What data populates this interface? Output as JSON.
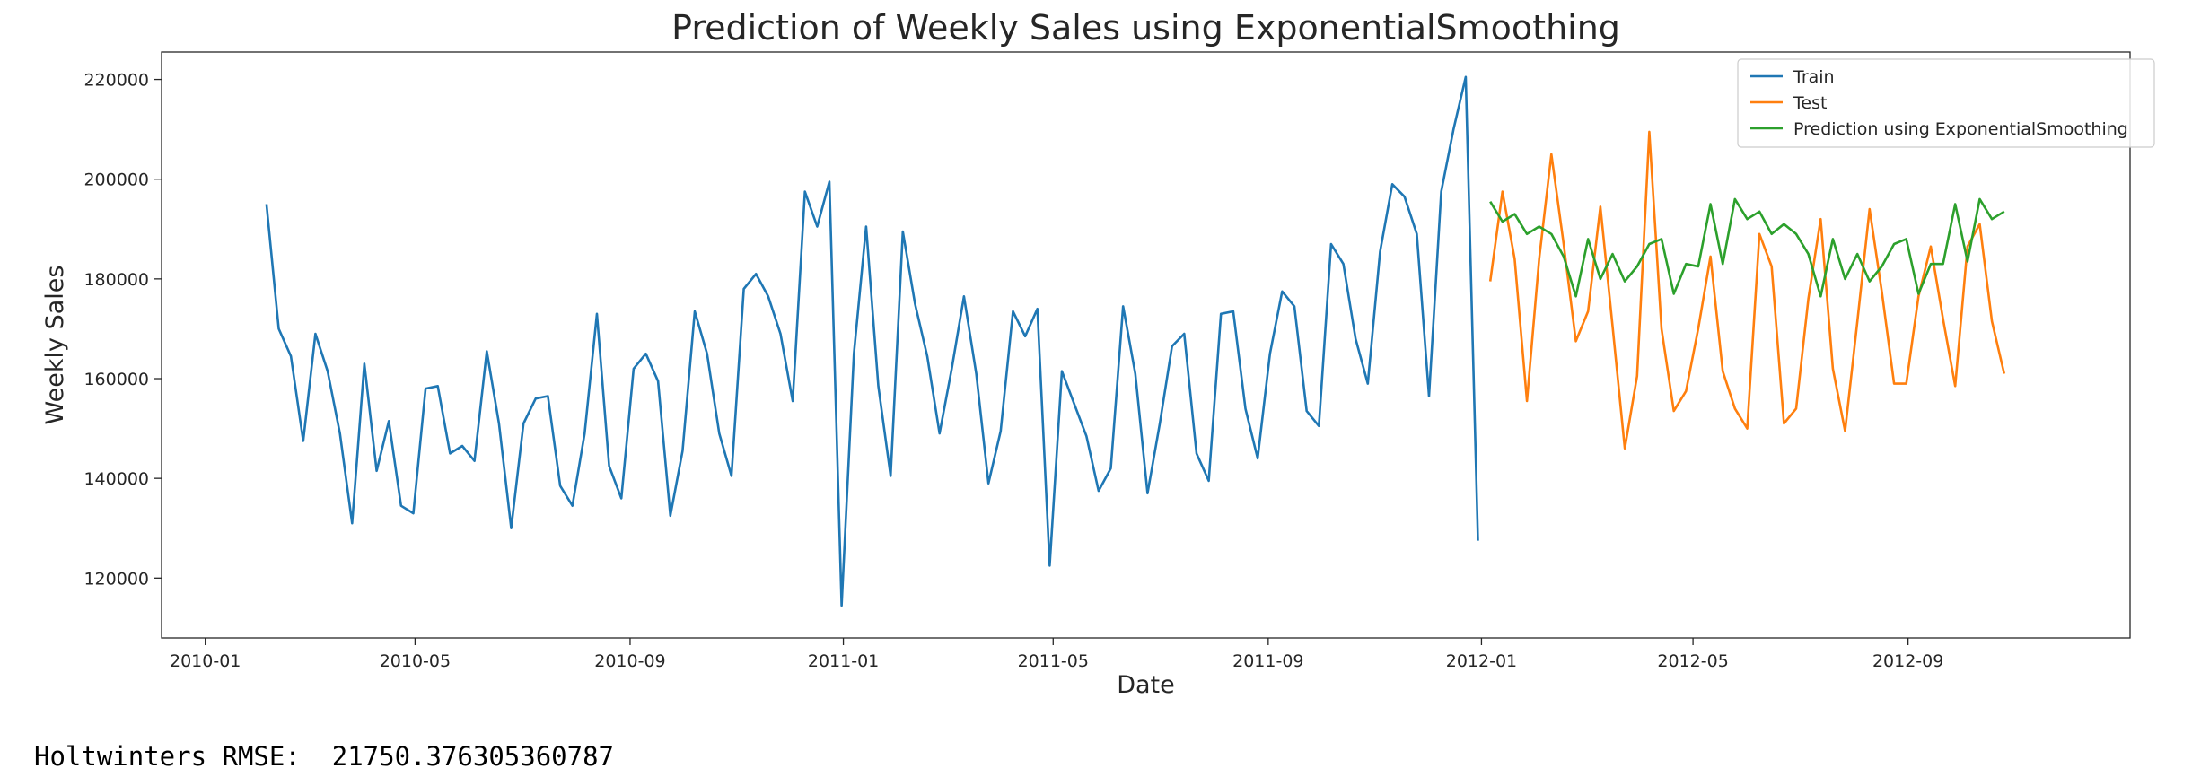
{
  "chart_data": {
    "type": "line",
    "title": "Prediction of Weekly Sales using ExponentialSmoothing",
    "xlabel": "Date",
    "ylabel": "Weekly Sales",
    "xlim": [
      "2009-12-07",
      "2013-01-06"
    ],
    "ylim": [
      108000,
      225500
    ],
    "x_ticks": [
      "2010-01",
      "2010-05",
      "2010-09",
      "2011-01",
      "2011-05",
      "2011-09",
      "2012-01",
      "2012-05",
      "2012-09"
    ],
    "y_ticks": [
      120000,
      140000,
      160000,
      180000,
      200000,
      220000
    ],
    "grid": false,
    "legend": "top-right",
    "series": [
      {
        "name": "Train",
        "color": "#1f77b4",
        "start": "2010-02-05",
        "step_days": 7,
        "values": [
          195000,
          170000,
          164500,
          147500,
          169000,
          161500,
          149000,
          131000,
          163000,
          141500,
          151500,
          134500,
          133000,
          158000,
          158500,
          145000,
          146500,
          143500,
          165500,
          151000,
          130000,
          151000,
          156000,
          156500,
          138500,
          134500,
          149000,
          173000,
          142500,
          136000,
          162000,
          165000,
          159500,
          132500,
          145500,
          173500,
          165000,
          149000,
          140500,
          178000,
          181000,
          176500,
          169000,
          155500,
          197500,
          190500,
          199500,
          114500,
          165000,
          190500,
          158500,
          140500,
          189500,
          175000,
          164500,
          149000,
          162000,
          176500,
          161000,
          139000,
          149500,
          173500,
          168500,
          174000,
          122500,
          161500,
          155000,
          148500,
          137500,
          142000,
          174500,
          161000,
          137000,
          151000,
          166500,
          169000,
          145000,
          139500,
          173000,
          173500,
          154000,
          144000,
          165000,
          177500,
          174500,
          153500,
          150500,
          187000,
          183000,
          168000,
          159000,
          185500,
          199000,
          196500,
          189000,
          156500,
          197500,
          210000,
          220500,
          127500
        ]
      },
      {
        "name": "Test",
        "color": "#ff7f0e",
        "start": "2012-01-06",
        "step_days": 7,
        "values": [
          179500,
          197500,
          184000,
          155500,
          184000,
          205000,
          187000,
          167500,
          173500,
          194500,
          170500,
          146000,
          160500,
          209500,
          170000,
          153500,
          157500,
          170000,
          184500,
          161500,
          154000,
          150000,
          189000,
          182500,
          151000,
          154000,
          176000,
          192000,
          162000,
          149500,
          171500,
          194000,
          177500,
          159000,
          159000,
          176500,
          186500,
          172000,
          158500,
          186500,
          191000,
          171500,
          161000
        ]
      },
      {
        "name": "Prediction using ExponentialSmoothing",
        "color": "#2ca02c",
        "start": "2012-01-06",
        "step_days": 7,
        "values": [
          195500,
          191500,
          193000,
          189000,
          190500,
          189000,
          184500,
          176500,
          188000,
          180000,
          185000,
          179500,
          182500,
          187000,
          188000,
          177000,
          183000,
          182500,
          195000,
          183000,
          196000,
          192000,
          193500,
          189000,
          191000,
          189000,
          185000,
          176500,
          188000,
          180000,
          185000,
          179500,
          182500,
          187000,
          188000,
          177000,
          183000,
          183000,
          195000,
          183500,
          196000,
          192000,
          193500
        ]
      }
    ]
  },
  "footer": {
    "rmse_text": "Holtwinters RMSE:  21750.376305360787"
  }
}
